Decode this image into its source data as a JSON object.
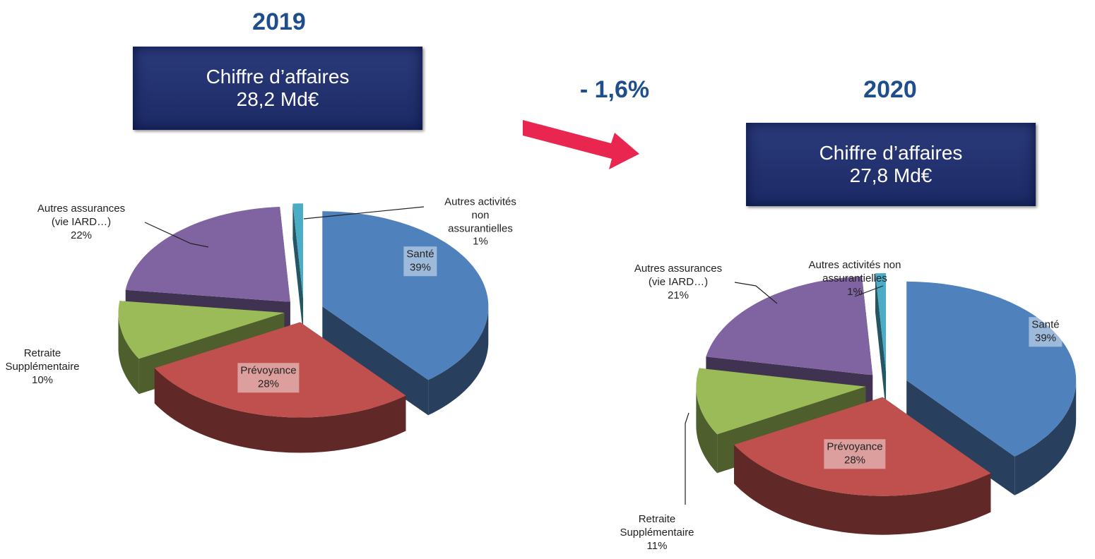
{
  "change_label": "- 1,6%",
  "chart_data": [
    {
      "type": "pie",
      "title": "2019",
      "annotations": [
        "Chiffre d’affaires",
        "28,2 Md€"
      ],
      "categories": [
        "Santé",
        "Prévoyance",
        "Retraite\nSupplémentaire",
        "Autres assurances\n(vie IARD…)",
        "Autres activités\nnon\nassurantielles"
      ],
      "values": [
        39,
        28,
        10,
        22,
        1
      ],
      "value_labels": [
        "39%",
        "28%",
        "10%",
        "22%",
        "1%"
      ],
      "colors": [
        "#4f81bd",
        "#c0504d",
        "#9bbb59",
        "#8064a2",
        "#4bacc6"
      ]
    },
    {
      "type": "pie",
      "title": "2020",
      "annotations": [
        "Chiffre d’affaires",
        "27,8 Md€"
      ],
      "categories": [
        "Santé",
        "Prévoyance",
        "Retraite\nSupplémentaire",
        "Autres assurances\n(vie IARD…)",
        "Autres activités non\nassurantielles"
      ],
      "values": [
        39,
        28,
        11,
        21,
        1
      ],
      "value_labels": [
        "39%",
        "28%",
        "11%",
        "21%",
        "1%"
      ],
      "colors": [
        "#4f81bd",
        "#c0504d",
        "#9bbb59",
        "#8064a2",
        "#4bacc6"
      ]
    }
  ]
}
